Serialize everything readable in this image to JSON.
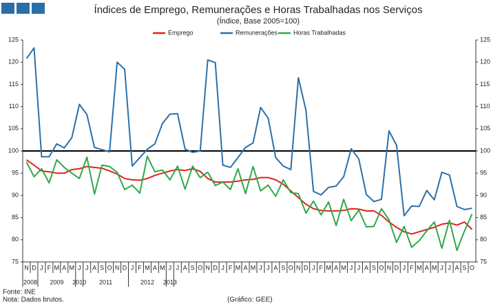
{
  "chart_data": {
    "type": "line",
    "title": "Índices de Emprego, Remunerações e Horas Trabalhadas nos Serviços",
    "subtitle": "(Índice, Base 2005=100)",
    "categories": [
      "N",
      "D",
      "J",
      "F",
      "M",
      "A",
      "M",
      "J",
      "J",
      "A",
      "S",
      "O",
      "N",
      "D",
      "J",
      "F",
      "M",
      "A",
      "M",
      "J",
      "J",
      "A",
      "S",
      "O",
      "N",
      "D",
      "J",
      "F",
      "M",
      "A",
      "M",
      "J",
      "J",
      "A",
      "S",
      "O",
      "N",
      "D",
      "J",
      "F",
      "M",
      "A",
      "M",
      "J",
      "J",
      "A",
      "S",
      "O",
      "N",
      "D",
      "J",
      "F",
      "M",
      "A",
      "M",
      "J",
      "J",
      "A",
      "S",
      "O"
    ],
    "years": [
      "2008",
      "2009",
      "2010",
      "2011",
      "2012",
      "2013"
    ],
    "series": [
      {
        "name": "Emprego",
        "color": "#e2211c",
        "values": [
          98,
          96.8,
          95.5,
          95.3,
          95,
          95,
          95.8,
          96,
          96.5,
          96.3,
          96.1,
          95.5,
          94.8,
          93.8,
          93.5,
          93.4,
          93.8,
          94.5,
          95,
          95.5,
          95.8,
          95.6,
          96,
          95.4,
          93.8,
          93,
          93,
          93,
          93.2,
          93.5,
          93.6,
          94,
          94,
          93.5,
          92.5,
          91,
          89.5,
          88,
          87,
          86.6,
          86.5,
          86.5,
          86.6,
          87,
          86.9,
          86.5,
          86.5,
          85.5,
          84,
          82.8,
          81.8,
          81.3,
          81.8,
          82.3,
          82.8,
          83.5,
          83.8,
          83.3,
          84,
          82.3
        ]
      },
      {
        "name": "Remunerações",
        "color": "#2a6fa8",
        "values": [
          120.8,
          123.2,
          98.7,
          98.7,
          101.6,
          100.7,
          103,
          110.5,
          108.2,
          100.8,
          100.3,
          99.8,
          120,
          118.4,
          96.6,
          98.5,
          100.4,
          101.6,
          106.2,
          108.3,
          108.4,
          100.4,
          99.7,
          100,
          120.5,
          119.9,
          96.8,
          96.3,
          98.5,
          100.8,
          101.8,
          109.8,
          107.4,
          98.5,
          96.6,
          95.8,
          116.5,
          109.2,
          90.9,
          90.1,
          91.8,
          92.1,
          94.2,
          100.5,
          98.2,
          90.2,
          88.6,
          89.1,
          104.5,
          101.3,
          85.4,
          87.6,
          87.5,
          91.1,
          89,
          95.2,
          94.6,
          87.5,
          86.8,
          87.1
        ]
      },
      {
        "name": "Horas Trabalhadas",
        "color": "#2ea84a",
        "values": [
          97.5,
          94.2,
          96,
          92.8,
          98,
          96.3,
          95,
          93.8,
          98.6,
          90.3,
          96.8,
          96.5,
          95.2,
          91.3,
          92.3,
          90.5,
          98.8,
          95.3,
          95.7,
          93.5,
          96.6,
          91.4,
          96.6,
          94,
          95.2,
          92.2,
          93,
          91.3,
          96,
          90.4,
          96.5,
          91,
          92.3,
          89.8,
          93.5,
          90.6,
          90.4,
          86,
          88.7,
          85.6,
          88.5,
          83.2,
          89.1,
          84.3,
          86.7,
          82.9,
          83,
          87,
          84.5,
          79.4,
          83,
          78.3,
          79.8,
          82,
          84,
          78.1,
          84.4,
          77.6,
          82,
          85.8
        ]
      }
    ],
    "ylim": [
      75,
      125
    ],
    "yticks": [
      75,
      80,
      85,
      90,
      95,
      100,
      105,
      110,
      115,
      120,
      125
    ],
    "y2lim": [
      75,
      125
    ],
    "y2ticks": [
      75,
      80,
      85,
      90,
      95,
      100,
      105,
      110,
      115,
      120,
      125
    ],
    "reference_line": 100,
    "legend": "top",
    "source": "Fonte: INE",
    "note": "Nota: Dados brutos.",
    "credit": "(Gráfico: GEE)"
  }
}
